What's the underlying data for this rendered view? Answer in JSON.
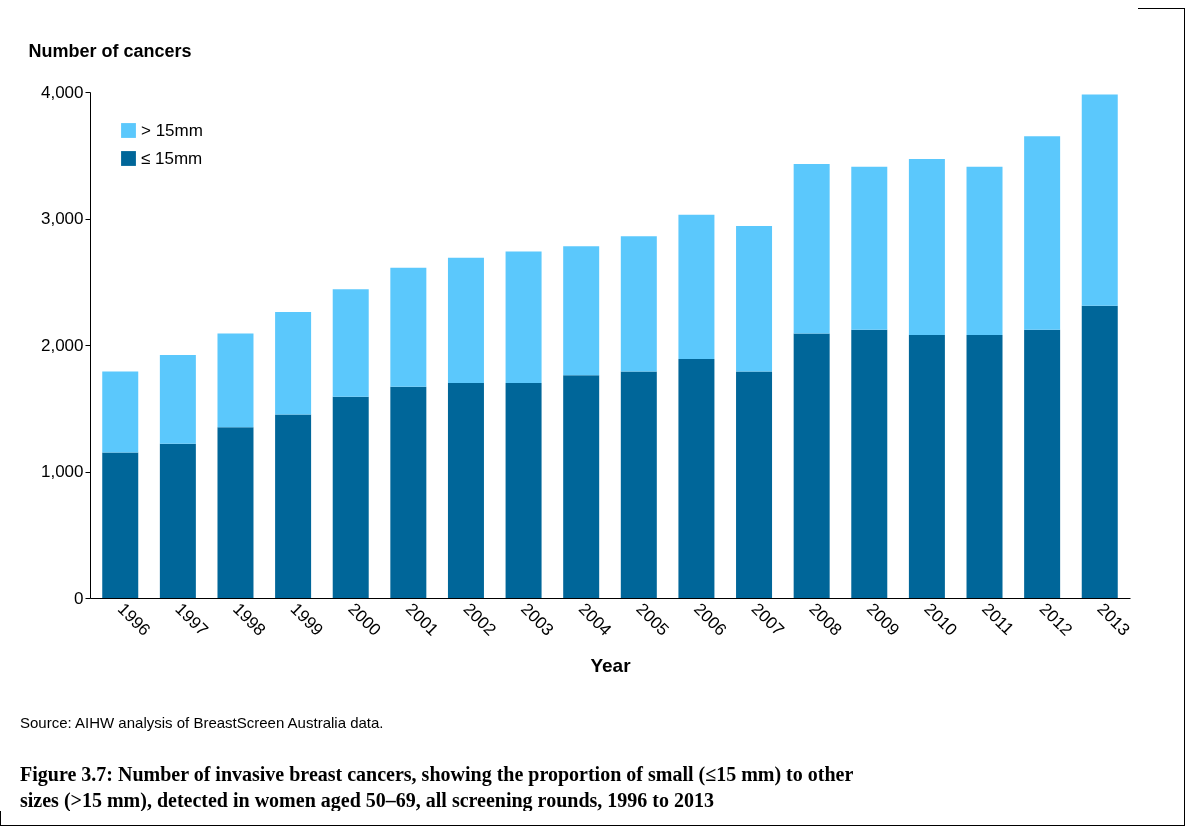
{
  "chart_data": {
    "type": "bar",
    "stacked": true,
    "title": "Figure 3.7: Number of invasive breast cancers, showing the proportion of small (≤15 mm) to other sizes (>15 mm), detected in women aged 50–69, all screening rounds, 1996 to 2013",
    "xlabel": "Year",
    "ylabel": "Number of cancers",
    "annotations": [
      "Source: AIHW analysis of BreastScreen Australia data."
    ],
    "categories": [
      "1996",
      "1997",
      "1998",
      "1999",
      "2000",
      "2001",
      "2002",
      "2003",
      "2004",
      "2005",
      "2006",
      "2007",
      "2008",
      "2009",
      "2010",
      "2011",
      "2012",
      "2013"
    ],
    "series": [
      {
        "name": "≤ 15mm",
        "color": "#006699",
        "values": [
          1150,
          1220,
          1350,
          1450,
          1590,
          1670,
          1700,
          1700,
          1760,
          1790,
          1890,
          1790,
          2090,
          2120,
          2080,
          2080,
          2120,
          2310
        ]
      },
      {
        "name": "> 15mm",
        "color": "#5bc8fc",
        "values": [
          640,
          700,
          740,
          810,
          850,
          940,
          990,
          1040,
          1020,
          1070,
          1140,
          1150,
          1340,
          1290,
          1390,
          1330,
          1530,
          1670
        ]
      }
    ],
    "ylim": [
      0,
      4000
    ],
    "yticks": [
      0,
      {
        "value": 1000,
        "label": "1,000"
      },
      {
        "value": 2000,
        "label": "2,000"
      },
      {
        "value": 3000,
        "label": "3,000"
      },
      {
        "value": 4000,
        "label": "4,000"
      }
    ],
    "grid": false,
    "legend": "top left"
  }
}
